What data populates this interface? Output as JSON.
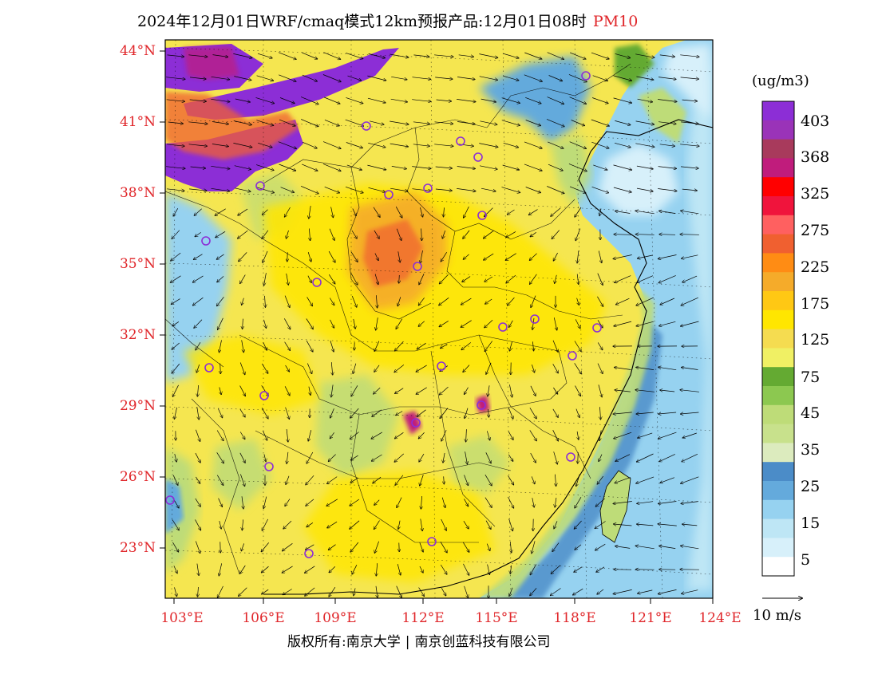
{
  "title": {
    "main": "2024年12月01日WRF/cmaq模式12km预报产品:12月01日08时",
    "pollutant": "PM10"
  },
  "lat_labels": [
    "44°N",
    "41°N",
    "38°N",
    "35°N",
    "32°N",
    "29°N",
    "26°N",
    "23°N"
  ],
  "lon_labels": [
    "103°E",
    "106°E",
    "109°E",
    "112°E",
    "115°E",
    "118°E",
    "121°E",
    "124°E"
  ],
  "colorbar": {
    "unit": "(ug/m3)",
    "labels": [
      "403",
      "368",
      "325",
      "275",
      "225",
      "175",
      "125",
      "75",
      "45",
      "35",
      "25",
      "15",
      "5"
    ],
    "colors": [
      "#8c2ed6",
      "#9a33b8",
      "#a83a5c",
      "#c01c7c",
      "#ff0000",
      "#f0143c",
      "#ff6060",
      "#f06030",
      "#ff8c14",
      "#f5ab2a",
      "#ffc814",
      "#ffe600",
      "#f5dc50",
      "#f0f064",
      "#64aa32",
      "#8cc850",
      "#bedc78",
      "#c8e18c",
      "#dcebbe",
      "#4b8cc8",
      "#64aadc",
      "#96d2f0",
      "#bee6f5",
      "#d7f0fa",
      "#ffffff"
    ]
  },
  "wind_vector_label": "10 m/s",
  "copyright": {
    "left": "版权所有:南京大学",
    "right": "南京创蓝科技有限公司"
  },
  "colors": {
    "title_text": "#000000",
    "pollutant_text": "#e0262a",
    "axis_label_text": "#e0262a",
    "station_marker": "#8c2ed6"
  }
}
